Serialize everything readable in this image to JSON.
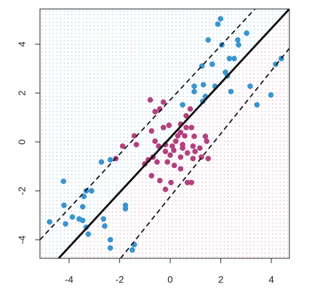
{
  "chart_data": {
    "type": "scatter",
    "xlim": [
      -5.15,
      4.71
    ],
    "ylim": [
      -4.76,
      5.44
    ],
    "xticks": [
      -4,
      -2,
      0,
      2,
      4
    ],
    "yticks": [
      -4,
      -2,
      0,
      2,
      4
    ],
    "grid": false,
    "series": [
      {
        "color": "#3a94cf",
        "x": [
          1.99,
          1.88,
          1.5,
          2.04,
          2.67,
          3.02,
          2.7,
          1.25,
          1.66,
          2.34,
          2.53,
          2.18,
          2.26,
          2.4,
          1.77,
          1.31,
          0.95,
          0.95,
          1.28,
          1.39,
          0.49,
          4.39,
          4.17,
          3.16,
          3.43,
          3.98,
          -2.37,
          -2.72,
          -4.22,
          -3.32,
          -3.11,
          -3.41,
          -4.2,
          -3.46,
          -3.87,
          -3.6,
          -4.77,
          -4.14,
          -3.46,
          -3.32,
          -2.64,
          -2.59,
          -3.24,
          -1.77,
          -1.77,
          -2.37,
          -2.37,
          -1.42,
          -1.5
        ],
        "values": [
          5.04,
          4.82,
          4.17,
          3.97,
          4.17,
          4.45,
          3.97,
          3.1,
          3.18,
          3.41,
          3.41,
          2.85,
          2.7,
          2.06,
          2.28,
          2.34,
          2.28,
          2.06,
          1.66,
          1.86,
          1.52,
          3.41,
          3.18,
          2.28,
          1.52,
          1.92,
          -0.73,
          -0.82,
          -1.61,
          -2.0,
          -2.0,
          -2.23,
          -2.59,
          -2.65,
          -3.07,
          -3.15,
          -3.27,
          -3.35,
          -3.21,
          -3.49,
          -3.15,
          -3.44,
          -3.77,
          -2.59,
          -2.73,
          -4.0,
          -4.34,
          -4.2,
          -4.42
        ]
      },
      {
        "color": "#b3417f",
        "x": [
          -0.79,
          -0.27,
          -0.41,
          -0.6,
          0.79,
          0.63,
          0.41,
          -0.05,
          -0.27,
          0.63,
          0.84,
          0.41,
          0.3,
          0.57,
          0.95,
          1.39,
          0.22,
          -0.19,
          -0.46,
          0.08,
          0.49,
          0.9,
          1.17,
          -0.19,
          0.14,
          0.68,
          0.98,
          0.41,
          1.23,
          1.5,
          -0.68,
          -0.52,
          -0.87,
          -1.01,
          -1.42,
          -1.34,
          -1.88,
          -2.15,
          -0.74,
          -0.41,
          -0.19,
          0.03,
          0.68,
          0.84,
          0.16,
          0.41,
          -0.11,
          -0.6,
          -0.74,
          0.49,
          0.9,
          1.44,
          0.0
        ],
        "values": [
          1.72,
          1.63,
          1.35,
          1.24,
          1.35,
          1.07,
          0.73,
          0.68,
          0.59,
          0.59,
          0.59,
          0.39,
          0.25,
          0.25,
          0.23,
          0.23,
          0.03,
          -0.11,
          -0.17,
          -0.17,
          -0.11,
          -0.17,
          -0.25,
          -0.39,
          -0.34,
          -0.45,
          -0.39,
          -0.62,
          -0.62,
          -0.68,
          -0.62,
          -0.82,
          -0.73,
          -0.9,
          0.25,
          -0.11,
          -0.17,
          -0.68,
          -1.38,
          -1.58,
          -1.94,
          -1.66,
          -1.66,
          -1.66,
          -0.96,
          -1.1,
          -0.82,
          0.03,
          0.45,
          -0.25,
          -0.68,
          0.03,
          -0.54
        ]
      }
    ],
    "lines": [
      {
        "style": "solid",
        "color": "#111111",
        "x": [
          -4.41,
          4.71
        ],
        "values": [
          -4.76,
          5.44
        ]
      },
      {
        "style": "dashed",
        "color": "#111111",
        "x": [
          -5.15,
          3.35
        ],
        "values": [
          -4.0,
          5.44
        ]
      },
      {
        "style": "dashed",
        "color": "#111111",
        "x": [
          -1.96,
          4.71
        ],
        "values": [
          -4.76,
          3.83
        ]
      }
    ],
    "region_colors": [
      "#8cc0e2",
      "#dc9bbb"
    ]
  }
}
